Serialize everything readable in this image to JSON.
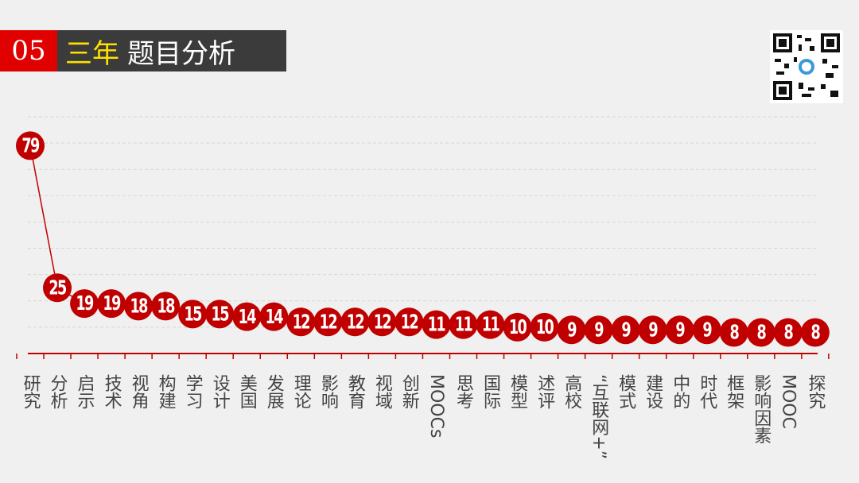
{
  "header": {
    "number": "05",
    "highlight": "三年",
    "title": "题目分析"
  },
  "chart_data": {
    "type": "line",
    "color": "#c00000",
    "categories": [
      "研究",
      "分析",
      "启示",
      "技术",
      "视角",
      "构建",
      "学习",
      "设计",
      "美国",
      "发展",
      "理论",
      "影响",
      "教育",
      "视域",
      "创新",
      "MOOCs",
      "思考",
      "国际",
      "模型",
      "述评",
      "高校",
      "“互联网+”",
      "模式",
      "建设",
      "中的",
      "时代",
      "框架",
      "影响因素",
      "MOOC",
      "探究"
    ],
    "values": [
      79,
      25,
      19,
      19,
      18,
      18,
      15,
      15,
      14,
      14,
      12,
      12,
      12,
      12,
      12,
      11,
      11,
      11,
      10,
      10,
      9,
      9,
      9,
      9,
      9,
      9,
      8,
      8,
      8,
      8
    ],
    "ylim": [
      0,
      90
    ],
    "yticks": [
      10,
      20,
      30,
      40,
      50,
      60,
      70,
      80,
      90
    ],
    "grid": true
  }
}
